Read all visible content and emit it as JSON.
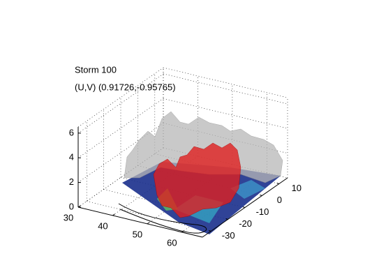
{
  "chart_data": {
    "type": "isosurface3d",
    "title": "Storm 100",
    "subtitle": "(U,V) (0.91726,-0.95765)",
    "xlim": [
      30,
      66
    ],
    "xticks": [
      30,
      40,
      50,
      60
    ],
    "ylim": [
      -35,
      15
    ],
    "yticks": [
      -30,
      -20,
      -10,
      0,
      10
    ],
    "zlim": [
      0,
      6.5
    ],
    "zticks": [
      0,
      2,
      4,
      6
    ],
    "grid": true
  }
}
